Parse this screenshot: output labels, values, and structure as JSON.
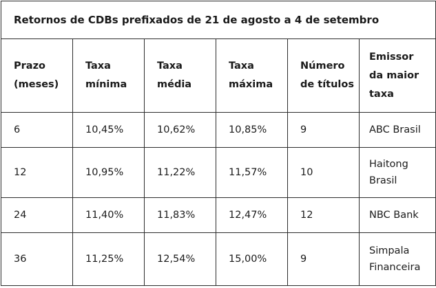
{
  "title": "Retornos de CDBs prefixados de 21 de agosto a 4 de setembro",
  "headers": [
    {
      "line1": "Prazo",
      "line2": "(meses)",
      "line3": ""
    },
    {
      "line1": "Taxa",
      "line2": "mínima",
      "line3": ""
    },
    {
      "line1": "Taxa",
      "line2": "média",
      "line3": ""
    },
    {
      "line1": "Taxa",
      "line2": "máxima",
      "line3": ""
    },
    {
      "line1": "Número",
      "line2": "de títulos",
      "line3": ""
    },
    {
      "line1": "Emissor",
      "line2": "da maior",
      "line3": "taxa"
    }
  ],
  "rows": [
    {
      "prazo": "6",
      "min": "10,45%",
      "media": "10,62%",
      "max": "10,85%",
      "titulos": "9",
      "emissor1": "ABC Brasil",
      "emissor2": ""
    },
    {
      "prazo": "12",
      "min": "10,95%",
      "media": "11,22%",
      "max": "11,57%",
      "titulos": "10",
      "emissor1": "Haitong",
      "emissor2": "Brasil"
    },
    {
      "prazo": "24",
      "min": "11,40%",
      "media": "11,83%",
      "max": "12,47%",
      "titulos": "12",
      "emissor1": "NBC Bank",
      "emissor2": ""
    },
    {
      "prazo": "36",
      "min": "11,25%",
      "media": "12,54%",
      "max": "15,00%",
      "titulos": "9",
      "emissor1": "Simpala",
      "emissor2": "Financeira"
    }
  ]
}
